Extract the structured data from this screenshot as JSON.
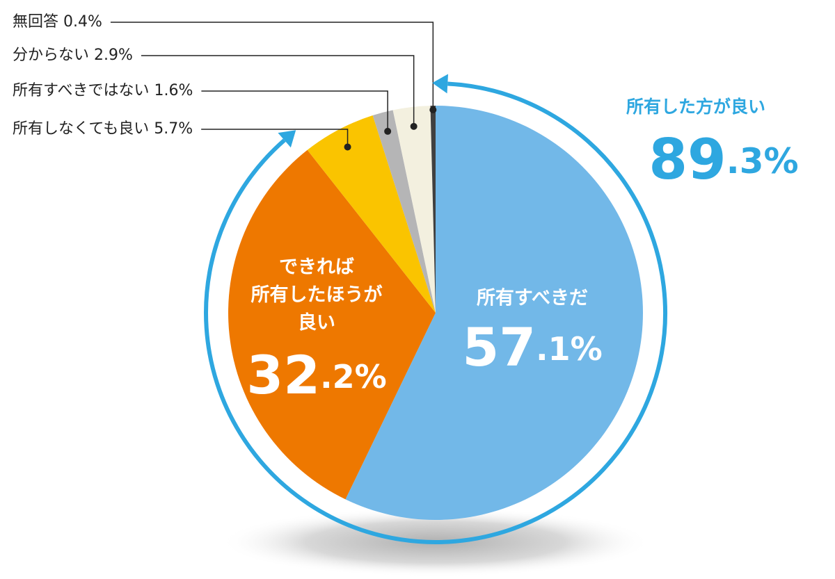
{
  "chart_data": {
    "type": "pie",
    "categories": [
      "所有すべきだ",
      "できれば\n所有したほうが\n良い",
      "所有しなくても良い",
      "所有すべきではない",
      "分からない",
      "無回答"
    ],
    "values": [
      57.1,
      32.2,
      5.7,
      1.6,
      2.9,
      0.4
    ],
    "value_labels": [
      "57.1%",
      "32.2%",
      "5.7%",
      "1.6%",
      "2.9%",
      "0.4%"
    ],
    "colors": [
      "#72b8e8",
      "#ee7800",
      "#fac400",
      "#b5b5b6",
      "#f3f0df",
      "#404040"
    ],
    "annotation": {
      "text": "所有した方が良い",
      "value": 89.3,
      "value_label": "89.3%",
      "color": "#2ea7e0"
    }
  }
}
